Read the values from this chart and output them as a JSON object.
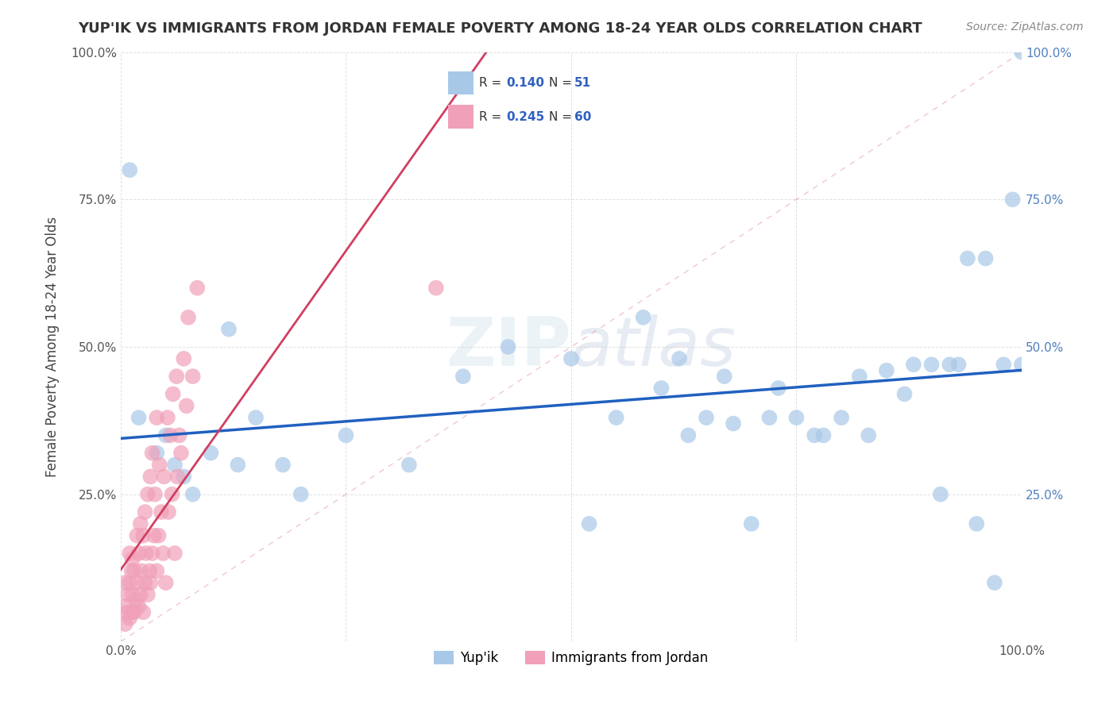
{
  "title": "YUP'IK VS IMMIGRANTS FROM JORDAN FEMALE POVERTY AMONG 18-24 YEAR OLDS CORRELATION CHART",
  "source": "Source: ZipAtlas.com",
  "ylabel": "Female Poverty Among 18-24 Year Olds",
  "watermark": "ZIPatlas",
  "legend1_label": "Yup'ik",
  "legend2_label": "Immigrants from Jordan",
  "R1": 0.14,
  "N1": 51,
  "R2": 0.245,
  "N2": 60,
  "color1": "#A8C8E8",
  "color2": "#F0A0B8",
  "line1_color": "#2060C0",
  "line2_color": "#D04060",
  "background_color": "#FFFFFF",
  "grid_color": "#CCCCCC",
  "xlim": [
    0.0,
    1.0
  ],
  "ylim": [
    0.0,
    1.0
  ],
  "xticks": [
    0.0,
    0.25,
    0.5,
    0.75,
    1.0
  ],
  "yticks": [
    0.0,
    0.25,
    0.5,
    0.75,
    1.0
  ],
  "xticklabels": [
    "0.0%",
    "",
    "",
    "",
    "100.0%"
  ],
  "yticklabels": [
    "",
    "25.0%",
    "50.0%",
    "75.0%",
    "100.0%"
  ],
  "yup_ik_x": [
    0.01,
    0.02,
    0.04,
    0.05,
    0.06,
    0.07,
    0.08,
    0.1,
    0.12,
    0.13,
    0.15,
    0.18,
    0.2,
    0.25,
    0.32,
    0.38,
    0.43,
    0.5,
    0.52,
    0.55,
    0.58,
    0.6,
    0.62,
    0.63,
    0.65,
    0.67,
    0.68,
    0.7,
    0.72,
    0.73,
    0.75,
    0.77,
    0.78,
    0.8,
    0.82,
    0.83,
    0.85,
    0.87,
    0.88,
    0.9,
    0.91,
    0.92,
    0.93,
    0.94,
    0.95,
    0.96,
    0.97,
    0.98,
    0.99,
    1.0,
    1.0
  ],
  "yup_ik_y": [
    0.8,
    0.38,
    0.32,
    0.35,
    0.3,
    0.28,
    0.25,
    0.32,
    0.53,
    0.3,
    0.38,
    0.3,
    0.25,
    0.35,
    0.3,
    0.45,
    0.5,
    0.48,
    0.2,
    0.38,
    0.55,
    0.43,
    0.48,
    0.35,
    0.38,
    0.45,
    0.37,
    0.2,
    0.38,
    0.43,
    0.38,
    0.35,
    0.35,
    0.38,
    0.45,
    0.35,
    0.46,
    0.42,
    0.47,
    0.47,
    0.25,
    0.47,
    0.47,
    0.65,
    0.2,
    0.65,
    0.1,
    0.47,
    0.75,
    0.47,
    1.0
  ],
  "jordan_x": [
    0.005,
    0.005,
    0.005,
    0.007,
    0.008,
    0.01,
    0.01,
    0.01,
    0.012,
    0.012,
    0.013,
    0.013,
    0.015,
    0.015,
    0.017,
    0.018,
    0.018,
    0.02,
    0.02,
    0.022,
    0.022,
    0.023,
    0.025,
    0.025,
    0.027,
    0.027,
    0.028,
    0.03,
    0.03,
    0.032,
    0.033,
    0.033,
    0.035,
    0.035,
    0.037,
    0.038,
    0.04,
    0.04,
    0.042,
    0.043,
    0.045,
    0.047,
    0.048,
    0.05,
    0.052,
    0.053,
    0.055,
    0.057,
    0.058,
    0.06,
    0.062,
    0.063,
    0.065,
    0.067,
    0.07,
    0.073,
    0.075,
    0.08,
    0.085,
    0.35
  ],
  "jordan_y": [
    0.03,
    0.06,
    0.1,
    0.05,
    0.08,
    0.04,
    0.1,
    0.15,
    0.05,
    0.12,
    0.08,
    0.14,
    0.05,
    0.12,
    0.07,
    0.1,
    0.18,
    0.06,
    0.15,
    0.08,
    0.2,
    0.12,
    0.05,
    0.18,
    0.1,
    0.22,
    0.15,
    0.08,
    0.25,
    0.12,
    0.1,
    0.28,
    0.15,
    0.32,
    0.18,
    0.25,
    0.12,
    0.38,
    0.18,
    0.3,
    0.22,
    0.15,
    0.28,
    0.1,
    0.38,
    0.22,
    0.35,
    0.25,
    0.42,
    0.15,
    0.45,
    0.28,
    0.35,
    0.32,
    0.48,
    0.4,
    0.55,
    0.45,
    0.6,
    0.6
  ]
}
